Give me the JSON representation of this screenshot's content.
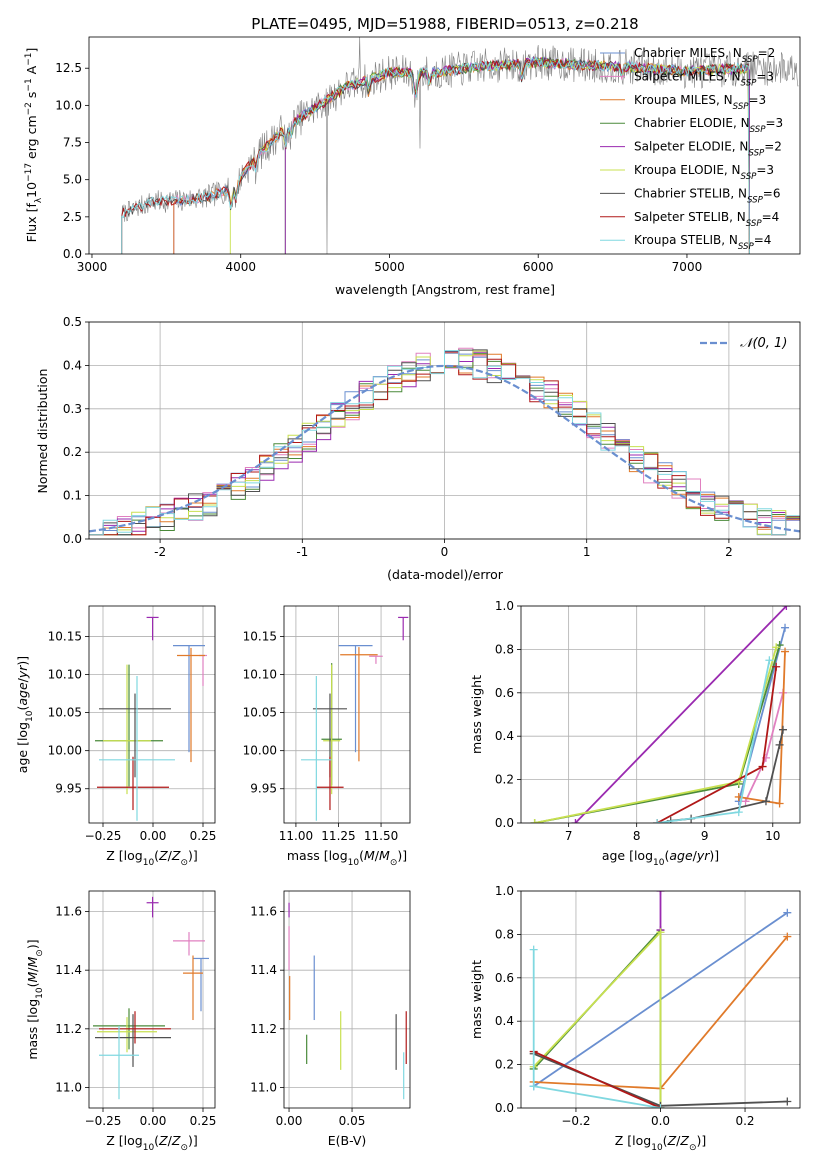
{
  "figure_title": "PLATE=0495, MJD=51988, FIBERID=0513, z=0.218",
  "colors": {
    "Chabrier MILES": "#6a8fd0",
    "Salpeter MILES": "#e080c0",
    "Kroupa MILES": "#e07a2a",
    "Chabrier ELODIE": "#4a8a3a",
    "Salpeter ELODIE": "#9a2ab0",
    "Kroupa ELODIE": "#c8e050",
    "Chabrier STELIB": "#505050",
    "Salpeter STELIB": "#b01818",
    "Kroupa STELIB": "#80d8e0",
    "data": "#808080",
    "gauss": "#6a8fd0"
  },
  "chart_data": [
    {
      "id": "spectrum",
      "type": "line",
      "title": "PLATE=0495, MJD=51988, FIBERID=0513, z=0.218",
      "xlabel": "wavelength [Angstrom, rest frame]",
      "ylabel": "Flux [f_λ10^-17 erg cm^-2 s^-1 A^-1]",
      "xlim": [
        2980,
        7760
      ],
      "ylim": [
        0,
        14.6
      ],
      "xticks": [
        3000,
        4000,
        5000,
        6000,
        7000
      ],
      "yticks": [
        0.0,
        2.5,
        5.0,
        7.5,
        10.0,
        12.5
      ],
      "ytick_labels": [
        "0.0",
        "2.5",
        "5.0",
        "7.5",
        "10.0",
        "12.5"
      ],
      "grid": false,
      "legend_position": "right",
      "legend": [
        {
          "model": "Chabrier MILES",
          "nssp": "2"
        },
        {
          "model": "Salpeter MILES",
          "nssp": "3"
        },
        {
          "model": "Kroupa MILES",
          "nssp": "3"
        },
        {
          "model": "Chabrier ELODIE",
          "nssp": "3"
        },
        {
          "model": "Salpeter ELODIE",
          "nssp": "2"
        },
        {
          "model": "Kroupa ELODIE",
          "nssp": "3"
        },
        {
          "model": "Chabrier STELIB",
          "nssp": "6"
        },
        {
          "model": "Salpeter STELIB",
          "nssp": "4"
        },
        {
          "model": "Kroupa STELIB",
          "nssp": "4"
        }
      ],
      "continuum": {
        "x": [
          3200,
          3400,
          3600,
          3800,
          3950,
          4100,
          4300,
          4500,
          4700,
          5000,
          5300,
          5600,
          6000,
          6300,
          6600,
          7000,
          7400,
          7750
        ],
        "y": [
          2.7,
          3.5,
          3.6,
          3.9,
          4.5,
          6.5,
          8.5,
          9.8,
          11.2,
          12.2,
          12.2,
          12.6,
          12.9,
          12.7,
          12.6,
          12.3,
          12.5,
          12.5
        ]
      },
      "model_starts": {
        "Chabrier MILES": 3550,
        "Salpeter MILES": 3550,
        "Kroupa MILES": 3550,
        "Chabrier ELODIE": 4300,
        "Salpeter ELODIE": 4300,
        "Kroupa ELODIE": 3930,
        "Chabrier STELIB": 3200,
        "Salpeter STELIB": 3200,
        "Kroupa STELIB": 3200
      }
    },
    {
      "id": "residuals",
      "type": "step-histogram",
      "xlabel": "(data-model)/error",
      "ylabel": "Normed distribution",
      "xlim": [
        -2.5,
        2.5
      ],
      "ylim": [
        0,
        0.5
      ],
      "xticks": [
        -2,
        -1,
        0,
        1,
        2
      ],
      "yticks": [
        0.0,
        0.1,
        0.2,
        0.3,
        0.4,
        0.5
      ],
      "ytick_labels": [
        "0.0",
        "0.1",
        "0.2",
        "0.3",
        "0.4",
        "0.5"
      ],
      "grid": true,
      "legend_position": "top-right",
      "gauss_label": "𝒩(0, 1)",
      "bin_width": 0.1
    },
    {
      "id": "age-vs-Z",
      "type": "errorbar",
      "xlabel": "Z [log10(Z/Z⊙)]",
      "ylabel": "age  [log10(age/yr)]",
      "xlim": [
        -0.32,
        0.31
      ],
      "ylim": [
        9.905,
        10.19
      ],
      "xticks": [
        -0.25,
        0.0,
        0.25
      ],
      "xtick_labels": [
        "−0.25",
        "0.00",
        "0.25"
      ],
      "yticks": [
        9.95,
        10.0,
        10.05,
        10.1,
        10.15
      ],
      "ytick_labels": [
        "9.95",
        "10.00",
        "10.05",
        "10.10",
        "10.15"
      ],
      "grid": true,
      "points": [
        {
          "model": "Chabrier MILES",
          "x": 0.18,
          "xerr": 0.08,
          "y": 10.138,
          "yerr_lo": 0.14,
          "yerr_hi": 0.0
        },
        {
          "model": "Salpeter MILES",
          "x": 0.25,
          "xerr": 0.02,
          "y": 10.125,
          "yerr_lo": 0.04,
          "yerr_hi": 0.0
        },
        {
          "model": "Kroupa MILES",
          "x": 0.19,
          "xerr": 0.07,
          "y": 10.125,
          "yerr_lo": 0.14,
          "yerr_hi": 0.01
        },
        {
          "model": "Chabrier ELODIE",
          "x": -0.12,
          "xerr": 0.17,
          "y": 10.013,
          "yerr_lo": 0.06,
          "yerr_hi": 0.1
        },
        {
          "model": "Salpeter ELODIE",
          "x": -0.002,
          "xerr": 0.03,
          "y": 10.175,
          "yerr_lo": 0.03,
          "yerr_hi": 0.0
        },
        {
          "model": "Kroupa ELODIE",
          "x": -0.13,
          "xerr": 0.12,
          "y": 10.013,
          "yerr_lo": 0.07,
          "yerr_hi": 0.1
        },
        {
          "model": "Chabrier STELIB",
          "x": -0.09,
          "xerr": 0.18,
          "y": 10.055,
          "yerr_lo": 0.09,
          "yerr_hi": 0.02
        },
        {
          "model": "Salpeter STELIB",
          "x": -0.1,
          "xerr": 0.18,
          "y": 9.952,
          "yerr_lo": 0.03,
          "yerr_hi": 0.04
        },
        {
          "model": "Kroupa STELIB",
          "x": -0.08,
          "xerr": 0.19,
          "y": 9.988,
          "yerr_lo": 0.08,
          "yerr_hi": 0.11
        }
      ]
    },
    {
      "id": "age-vs-mass",
      "type": "errorbar",
      "xlabel": "mass [log10(M/M⊙)]",
      "ylabel": "",
      "xlim": [
        10.93,
        11.67
      ],
      "ylim": [
        9.905,
        10.19
      ],
      "xticks": [
        11.0,
        11.25,
        11.5
      ],
      "xtick_labels": [
        "11.00",
        "11.25",
        "11.50"
      ],
      "yticks": [
        9.95,
        10.0,
        10.05,
        10.1,
        10.15
      ],
      "ytick_labels": [
        "9.95",
        "10.00",
        "10.05",
        "10.10",
        "10.15"
      ],
      "grid": true,
      "points": [
        {
          "model": "Chabrier MILES",
          "x": 11.35,
          "xerr": 0.1,
          "y": 10.138,
          "yerr_lo": 0.14,
          "yerr_hi": 0.0
        },
        {
          "model": "Salpeter MILES",
          "x": 11.47,
          "xerr": 0.04,
          "y": 10.124,
          "yerr_lo": 0.01,
          "yerr_hi": 0.0
        },
        {
          "model": "Kroupa MILES",
          "x": 11.37,
          "xerr": 0.11,
          "y": 10.126,
          "yerr_lo": 0.14,
          "yerr_hi": 0.01
        },
        {
          "model": "Chabrier ELODIE",
          "x": 11.21,
          "xerr": 0.06,
          "y": 10.015,
          "yerr_lo": 0.06,
          "yerr_hi": 0.1
        },
        {
          "model": "Salpeter ELODIE",
          "x": 11.63,
          "xerr": 0.03,
          "y": 10.175,
          "yerr_lo": 0.03,
          "yerr_hi": 0.0
        },
        {
          "model": "Kroupa ELODIE",
          "x": 11.21,
          "xerr": 0.05,
          "y": 10.013,
          "yerr_lo": 0.07,
          "yerr_hi": 0.1
        },
        {
          "model": "Chabrier STELIB",
          "x": 11.2,
          "xerr": 0.1,
          "y": 10.055,
          "yerr_lo": 0.09,
          "yerr_hi": 0.02
        },
        {
          "model": "Salpeter STELIB",
          "x": 11.2,
          "xerr": 0.08,
          "y": 9.952,
          "yerr_lo": 0.03,
          "yerr_hi": 0.04
        },
        {
          "model": "Kroupa STELIB",
          "x": 11.12,
          "xerr": 0.09,
          "y": 9.988,
          "yerr_lo": 0.08,
          "yerr_hi": 0.11
        }
      ]
    },
    {
      "id": "weight-vs-age",
      "type": "line",
      "xlabel": "age  [log10(age/yr)]",
      "ylabel": "mass weight",
      "xlim": [
        6.3,
        10.4
      ],
      "ylim": [
        0,
        1.0
      ],
      "xticks": [
        7,
        8,
        9,
        10
      ],
      "yticks": [
        0.0,
        0.2,
        0.4,
        0.6,
        0.8,
        1.0
      ],
      "ytick_labels": [
        "0.0",
        "0.2",
        "0.4",
        "0.6",
        "0.8",
        "1.0"
      ],
      "grid": true,
      "series": [
        {
          "model": "Chabrier MILES",
          "x": [
            9.5,
            10.18
          ],
          "y": [
            0.1,
            0.9
          ]
        },
        {
          "model": "Salpeter MILES",
          "x": [
            9.6,
            9.9,
            10.15
          ],
          "y": [
            0.1,
            0.3,
            0.6
          ]
        },
        {
          "model": "Kroupa MILES",
          "x": [
            9.5,
            10.1,
            10.18
          ],
          "y": [
            0.12,
            0.09,
            0.79
          ]
        },
        {
          "model": "Chabrier ELODIE",
          "x": [
            6.5,
            9.5,
            10.1
          ],
          "y": [
            0.0,
            0.18,
            0.82
          ]
        },
        {
          "model": "Salpeter ELODIE",
          "x": [
            7.1,
            10.2
          ],
          "y": [
            0.0,
            1.0
          ]
        },
        {
          "model": "Kroupa ELODIE",
          "x": [
            6.5,
            9.5,
            10.05
          ],
          "y": [
            0.0,
            0.19,
            0.81
          ]
        },
        {
          "model": "Chabrier STELIB",
          "x": [
            8.5,
            8.8,
            9.9,
            10.1,
            10.15
          ],
          "y": [
            0.01,
            0.02,
            0.1,
            0.36,
            0.43
          ]
        },
        {
          "model": "Salpeter STELIB",
          "x": [
            8.3,
            9.85,
            10.05
          ],
          "y": [
            0.0,
            0.26,
            0.72
          ]
        },
        {
          "model": "Kroupa STELIB",
          "x": [
            8.3,
            9.5,
            9.95
          ],
          "y": [
            0.0,
            0.05,
            0.75
          ]
        }
      ]
    },
    {
      "id": "mass-vs-Z",
      "type": "errorbar",
      "xlabel": "Z [log10(Z/Z⊙)]",
      "ylabel": "mass [log10(M/M⊙)]",
      "xlim": [
        -0.32,
        0.31
      ],
      "ylim": [
        10.93,
        11.67
      ],
      "xticks": [
        -0.25,
        0.0,
        0.25
      ],
      "xtick_labels": [
        "−0.25",
        "0.00",
        "0.25"
      ],
      "yticks": [
        11.0,
        11.2,
        11.4,
        11.6
      ],
      "ytick_labels": [
        "11.0",
        "11.2",
        "11.4",
        "11.6"
      ],
      "grid": true,
      "points": [
        {
          "model": "Chabrier MILES",
          "x": 0.24,
          "xerr": 0.04,
          "y": 11.44,
          "yerr_lo": 0.18,
          "yerr_hi": 0.0
        },
        {
          "model": "Salpeter MILES",
          "x": 0.18,
          "xerr": 0.08,
          "y": 11.5,
          "yerr_lo": 0.05,
          "yerr_hi": 0.03
        },
        {
          "model": "Kroupa MILES",
          "x": 0.2,
          "xerr": 0.05,
          "y": 11.39,
          "yerr_lo": 0.16,
          "yerr_hi": 0.06
        },
        {
          "model": "Chabrier ELODIE",
          "x": -0.12,
          "xerr": 0.18,
          "y": 11.21,
          "yerr_lo": 0.08,
          "yerr_hi": 0.06
        },
        {
          "model": "Salpeter ELODIE",
          "x": -0.002,
          "xerr": 0.03,
          "y": 11.63,
          "yerr_lo": 0.05,
          "yerr_hi": 0.02
        },
        {
          "model": "Kroupa ELODIE",
          "x": -0.13,
          "xerr": 0.15,
          "y": 11.19,
          "yerr_lo": 0.07,
          "yerr_hi": 0.05
        },
        {
          "model": "Chabrier STELIB",
          "x": -0.1,
          "xerr": 0.19,
          "y": 11.17,
          "yerr_lo": 0.1,
          "yerr_hi": 0.08
        },
        {
          "model": "Salpeter STELIB",
          "x": -0.09,
          "xerr": 0.18,
          "y": 11.2,
          "yerr_lo": 0.05,
          "yerr_hi": 0.06
        },
        {
          "model": "Kroupa STELIB",
          "x": -0.17,
          "xerr": 0.1,
          "y": 11.11,
          "yerr_lo": 0.15,
          "yerr_hi": 0.1
        }
      ]
    },
    {
      "id": "mass-vs-ebv",
      "type": "errorbar",
      "xlabel": "E(B-V)",
      "ylabel": "",
      "xlim": [
        -0.004,
        0.096
      ],
      "ylim": [
        10.93,
        11.67
      ],
      "xticks": [
        0.0,
        0.05
      ],
      "xtick_labels": [
        "0.00",
        "0.05"
      ],
      "yticks": [
        11.0,
        11.2,
        11.4,
        11.6
      ],
      "ytick_labels": [
        "11.0",
        "11.2",
        "11.4",
        "11.6"
      ],
      "grid": true,
      "points": [
        {
          "model": "Chabrier MILES",
          "x": 0.02,
          "y": 11.33,
          "yerr_lo": 0.1,
          "yerr_hi": 0.12
        },
        {
          "model": "Salpeter MILES",
          "x": 0.0,
          "y": 11.45,
          "yerr_lo": 0.05,
          "yerr_hi": 0.1
        },
        {
          "model": "Kroupa MILES",
          "x": 0.0005,
          "y": 11.38,
          "yerr_lo": 0.15,
          "yerr_hi": 0.0
        },
        {
          "model": "Chabrier ELODIE",
          "x": 0.014,
          "y": 11.18,
          "yerr_lo": 0.1,
          "yerr_hi": 0.0
        },
        {
          "model": "Salpeter ELODIE",
          "x": 0.0,
          "y": 11.63,
          "yerr_lo": 0.05,
          "yerr_hi": 0.0
        },
        {
          "model": "Kroupa ELODIE",
          "x": 0.041,
          "y": 11.16,
          "yerr_lo": 0.1,
          "yerr_hi": 0.1
        },
        {
          "model": "Chabrier STELIB",
          "x": 0.085,
          "y": 11.17,
          "yerr_lo": 0.11,
          "yerr_hi": 0.08
        },
        {
          "model": "Salpeter STELIB",
          "x": 0.093,
          "y": 11.18,
          "yerr_lo": 0.1,
          "yerr_hi": 0.08
        },
        {
          "model": "Kroupa STELIB",
          "x": 0.091,
          "y": 11.03,
          "yerr_lo": 0.07,
          "yerr_hi": 0.09
        }
      ]
    },
    {
      "id": "weight-vs-Z",
      "type": "line",
      "xlabel": "Z [log10(Z/Z⊙)]",
      "ylabel": "mass weight",
      "xlim": [
        -0.33,
        0.33
      ],
      "ylim": [
        0,
        1.0
      ],
      "xticks": [
        -0.2,
        0.0,
        0.2
      ],
      "xtick_labels": [
        "−0.2",
        "0.0",
        "0.2"
      ],
      "yticks": [
        0.0,
        0.2,
        0.4,
        0.6,
        0.8,
        1.0
      ],
      "ytick_labels": [
        "0.0",
        "0.2",
        "0.4",
        "0.6",
        "0.8",
        "1.0"
      ],
      "grid": true,
      "series": [
        {
          "model": "Chabrier MILES",
          "x": [
            -0.3,
            0.3
          ],
          "y": [
            0.1,
            0.9
          ]
        },
        {
          "model": "Kroupa MILES",
          "x": [
            -0.3,
            0.0,
            0.3
          ],
          "y": [
            0.12,
            0.09,
            0.79
          ]
        },
        {
          "model": "Chabrier ELODIE",
          "x": [
            -0.3,
            0.0,
            0.0
          ],
          "y": [
            0.18,
            0.82,
            0.0
          ]
        },
        {
          "model": "Salpeter ELODIE",
          "x": [
            0.0,
            0.0
          ],
          "y": [
            1.0,
            0.82
          ]
        },
        {
          "model": "Kroupa ELODIE",
          "x": [
            -0.3,
            0.0,
            0.0
          ],
          "y": [
            0.19,
            0.81,
            0.0
          ]
        },
        {
          "model": "Chabrier STELIB",
          "x": [
            -0.3,
            0.0,
            0.3
          ],
          "y": [
            0.25,
            0.01,
            0.03
          ]
        },
        {
          "model": "Salpeter STELIB",
          "x": [
            -0.3,
            0.0
          ],
          "y": [
            0.26,
            0.0
          ]
        },
        {
          "model": "Kroupa STELIB",
          "x": [
            -0.3,
            -0.3,
            0.0
          ],
          "y": [
            0.73,
            0.1,
            0.0
          ]
        }
      ]
    }
  ]
}
